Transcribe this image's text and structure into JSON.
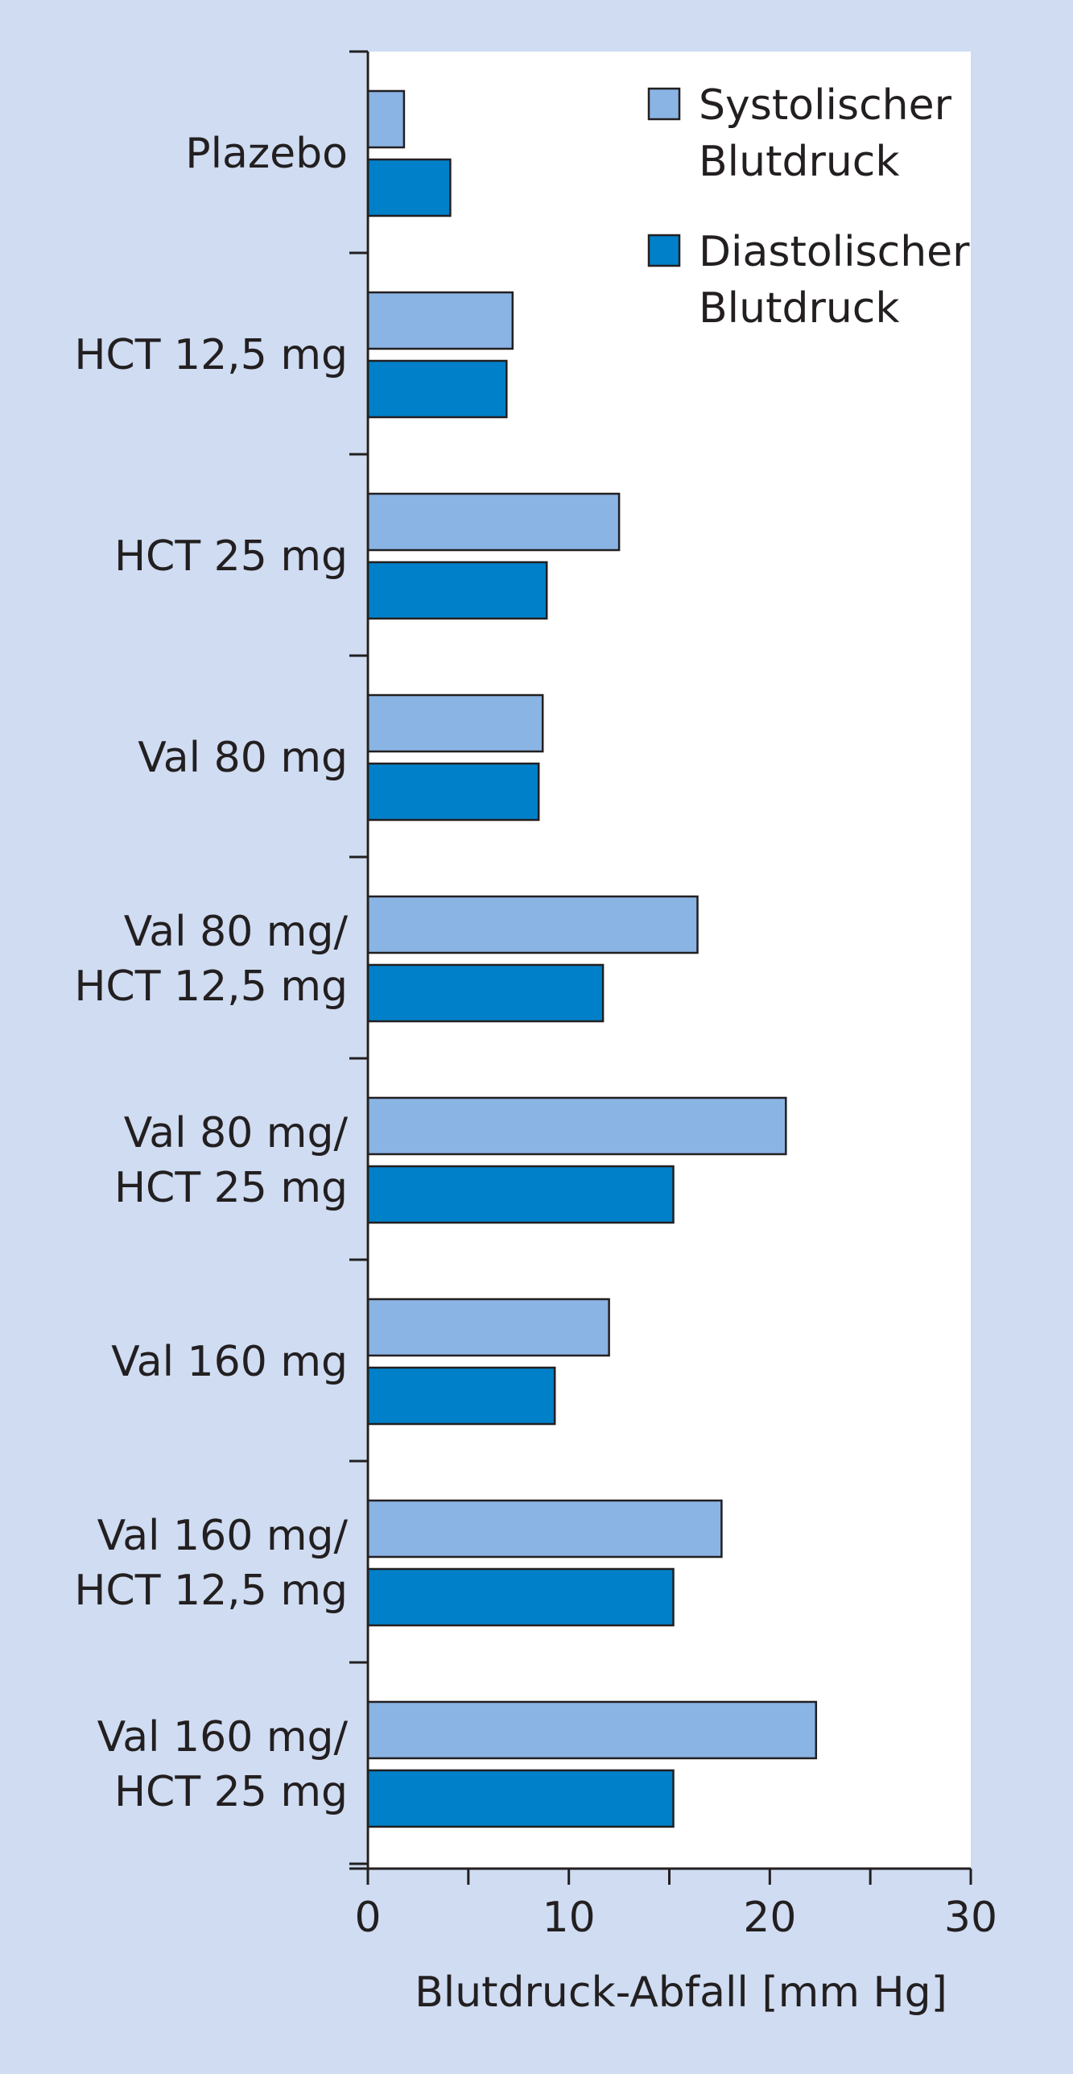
{
  "colors": {
    "background": "#cfdcf2",
    "plot_area": "#ffffff",
    "systolic": "#8ab4e4",
    "diastolic": "#0080c8",
    "axis": "#231f20"
  },
  "chart_data": {
    "type": "bar",
    "orientation": "horizontal",
    "categories": [
      [
        "Plazebo"
      ],
      [
        "HCT 12,5 mg"
      ],
      [
        "HCT 25 mg"
      ],
      [
        "Val 80 mg"
      ],
      [
        "Val 80 mg/",
        "HCT 12,5 mg"
      ],
      [
        "Val 80 mg/",
        "HCT 25 mg"
      ],
      [
        "Val 160 mg"
      ],
      [
        "Val 160 mg/",
        "HCT 12,5 mg"
      ],
      [
        "Val 160 mg/",
        "HCT 25 mg"
      ]
    ],
    "series": [
      {
        "name": [
          "Systolischer",
          "Blutdruck"
        ],
        "color": "#8ab4e4",
        "values": [
          1.8,
          7.2,
          12.5,
          8.7,
          16.4,
          20.8,
          12.0,
          17.6,
          22.3
        ]
      },
      {
        "name": [
          "Diastolischer",
          "Blutdruck"
        ],
        "color": "#0080c8",
        "values": [
          4.1,
          6.9,
          8.9,
          8.5,
          11.7,
          15.2,
          9.3,
          15.2,
          15.2
        ]
      }
    ],
    "xlabel": "Blutdruck-Abfall [mm Hg]",
    "xlim": [
      0,
      30
    ],
    "xticks": [
      0,
      10,
      20,
      30
    ],
    "xticks_minor": [
      5,
      15,
      25
    ],
    "grid": false,
    "legend": "top-right"
  }
}
